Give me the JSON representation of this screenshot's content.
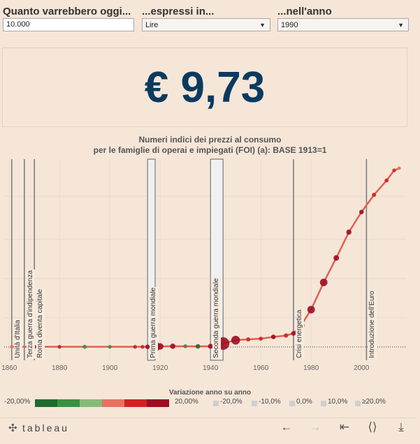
{
  "params": {
    "amount": {
      "label": "Quanto varrebbero oggi...",
      "value": "10.000"
    },
    "currency": {
      "label": "...espressi in...",
      "value": "Lire"
    },
    "year": {
      "label": "...nell'anno",
      "value": "1990"
    }
  },
  "result": "€ 9,73",
  "chart_title_1": "Numeri indici dei prezzi al consumo",
  "chart_title_2": "per le famiglie di operai e impiegati (FOI) (a): BASE 1913=1",
  "events": [
    {
      "label": "Unità d'Italia",
      "year": 1861
    },
    {
      "label": "Terza guerra d'indipendenza",
      "year": 1866
    },
    {
      "label": "Roma diventa capitale",
      "year": 1870
    },
    {
      "label": "Prima guerra mondiale",
      "year": 1915,
      "year_end": 1918
    },
    {
      "label": "Seconda guerra mondiale",
      "year": 1940,
      "year_end": 1945
    },
    {
      "label": "Crisi energetica",
      "year": 1973
    },
    {
      "label": "Introduzione dell'Euro",
      "year": 2002
    }
  ],
  "chart_data": {
    "type": "line",
    "title": "Numeri indici dei prezzi al consumo per le famiglie di operai e impiegati (FOI) (a): BASE 1913=1",
    "xlabel": "",
    "ylabel": "",
    "xlim": [
      1858,
      2018
    ],
    "x_ticks": [
      "1860",
      "1880",
      "1900",
      "1920",
      "1940",
      "1960",
      "1980",
      "2000"
    ],
    "grid": true,
    "series": [
      {
        "x": [
          1861,
          1870,
          1880,
          1890,
          1900,
          1910,
          1913,
          1915,
          1918,
          1920,
          1925,
          1930,
          1935,
          1940,
          1945,
          1950,
          1955,
          1960,
          1965,
          1970,
          1973,
          1976,
          1980,
          1985,
          1990,
          1995,
          2000,
          2005,
          2010,
          2013,
          2015
        ],
        "y": [
          0.9,
          1.0,
          1.05,
          0.95,
          0.9,
          0.95,
          1.0,
          1.2,
          2.6,
          4.0,
          5.3,
          4.8,
          3.9,
          5.0,
          24.0,
          47.0,
          53.0,
          58.0,
          70.0,
          80.0,
          95.0,
          150.0,
          260.0,
          450.0,
          620.0,
          800.0,
          940.0,
          1060.0,
          1160.0,
          1230.0,
          1245.0
        ]
      }
    ]
  },
  "legend": {
    "title": "Variazione anno su anno",
    "min_label": "-20,00%",
    "max_label": "20,00%",
    "colors": [
      "#1e6b2d",
      "#3a9142",
      "#89b97a",
      "#e87060",
      "#cf2222",
      "#9e0d22"
    ],
    "size_items": [
      "-20,0%",
      "-10,0%",
      "0,0%",
      "10,0%",
      "≥20,0%"
    ]
  },
  "toolbar": {
    "logo": "tableau",
    "icons": [
      "back-icon",
      "forward-icon",
      "revert-icon",
      "share-icon",
      "download-icon"
    ]
  }
}
